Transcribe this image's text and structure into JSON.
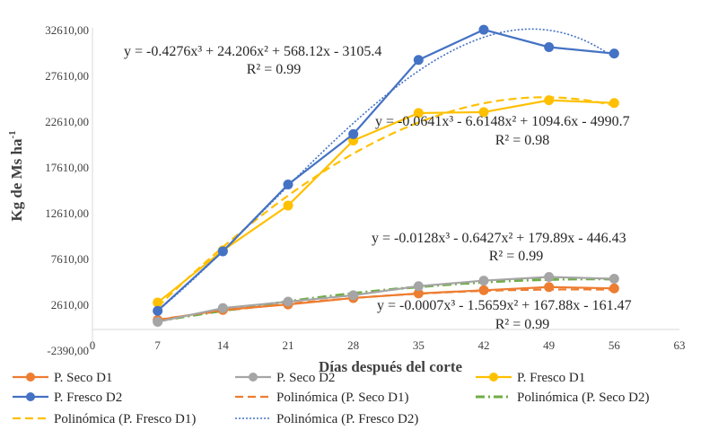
{
  "chart_data": {
    "type": "scatter",
    "title": "",
    "xlabel": "Días después del corte",
    "ylabel": "Kg de Ms ha-1",
    "ylabel_main": "Kg de Ms ha",
    "ylabel_sup": "-1",
    "xlim": [
      0,
      63
    ],
    "ylim": [
      -2390,
      32610
    ],
    "xticks": [
      0,
      7,
      14,
      21,
      28,
      35,
      42,
      49,
      56,
      63
    ],
    "yticks": [
      -2390,
      2610,
      7610,
      12610,
      17610,
      22610,
      27610,
      32610
    ],
    "xtick_labels": [
      "0",
      "7",
      "14",
      "21",
      "28",
      "35",
      "42",
      "49",
      "56",
      "63"
    ],
    "ytick_labels": [
      "-2390,00",
      "2610,00",
      "7610,00",
      "12610,00",
      "17610,00",
      "22610,00",
      "27610,00",
      "32610,00"
    ],
    "grid": false,
    "legend_position": "bottom",
    "x": [
      7,
      14,
      21,
      28,
      35,
      42,
      49,
      56
    ],
    "series": [
      {
        "name": "P. Seco D1",
        "color": "#ED7D31",
        "style": "solid-marker",
        "values": [
          900,
          2000,
          2600,
          3300,
          3800,
          4150,
          4500,
          4350
        ]
      },
      {
        "name": "P. Seco D2",
        "color": "#A5A5A5",
        "style": "solid-marker",
        "values": [
          700,
          2200,
          2900,
          3600,
          4600,
          5200,
          5600,
          5400
        ]
      },
      {
        "name": "P. Fresco D1",
        "color": "#FFC000",
        "style": "solid-marker",
        "values": [
          2800,
          8500,
          13400,
          20500,
          23500,
          23600,
          24900,
          24600
        ]
      },
      {
        "name": "P. Fresco D2",
        "color": "#4472C4",
        "style": "solid-marker",
        "values": [
          1900,
          8400,
          15700,
          21200,
          29300,
          32600,
          30700,
          30000
        ]
      },
      {
        "name": "Polinómica (P. Seco D1)",
        "color": "#ED7D31",
        "style": "dash",
        "trend": {
          "a": -0.0007,
          "b": -1.5659,
          "c": 167.88,
          "d": -161.47
        }
      },
      {
        "name": "Polinómica (P. Seco D2)",
        "color": "#70AD47",
        "style": "dashdot",
        "trend": {
          "a": -0.0128,
          "b": -0.6427,
          "c": 179.89,
          "d": -446.43
        }
      },
      {
        "name": "Polinómica (P. Fresco D1)",
        "color": "#FFC000",
        "style": "dash",
        "trend": {
          "a": -0.0641,
          "b": -6.6148,
          "c": 1094.6,
          "d": -4990.7
        }
      },
      {
        "name": "Polinómica (P. Fresco D2)",
        "color": "#4472C4",
        "style": "dot",
        "trend": {
          "a": -0.4276,
          "b": 24.206,
          "c": 568.12,
          "d": -3105.4
        }
      }
    ],
    "annotations": [
      {
        "line1": "y = -0.4276x³ + 24.206x² + 568.12x - 3105.4",
        "line2": "R² = 0.99"
      },
      {
        "line1": "y = -0.0641x³ - 6.6148x² + 1094.6x - 4990.7",
        "line2": "R² = 0.98"
      },
      {
        "line1": "y = -0.0128x³ - 0.6427x² + 179.89x - 446.43",
        "line2": "R² = 0.99"
      },
      {
        "line1": "y = -0.0007x³ - 1.5659x² + 167.88x - 161.47",
        "line2": "R² = 0.99"
      }
    ]
  }
}
